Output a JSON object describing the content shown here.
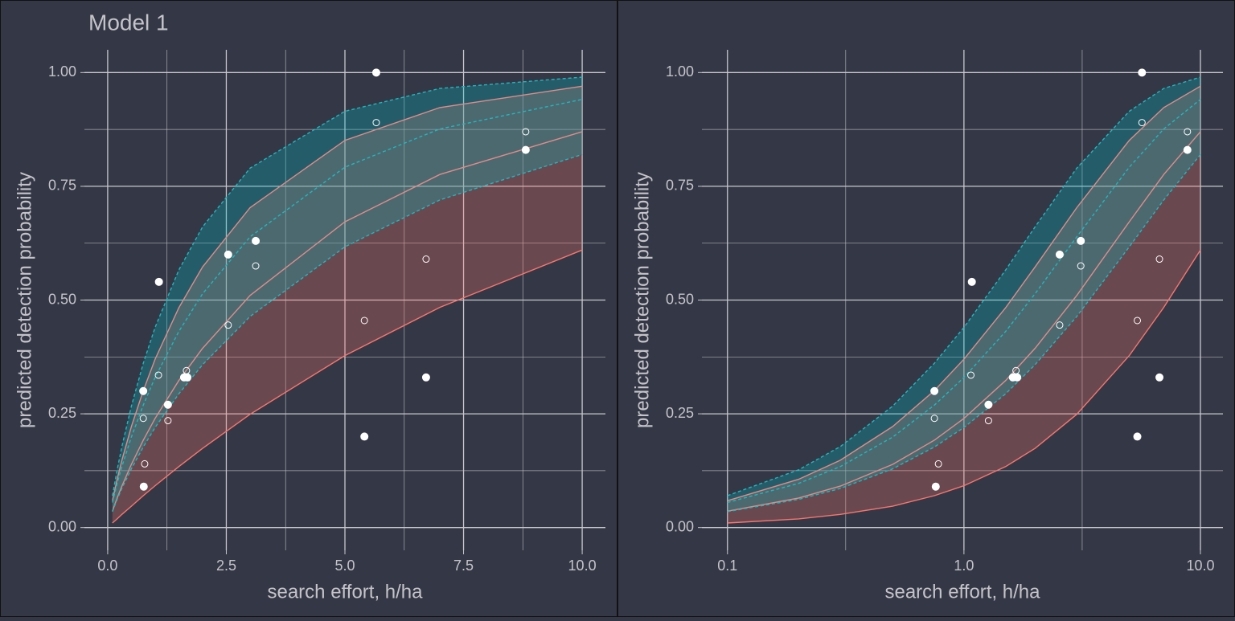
{
  "chart_data": [
    {
      "type": "line",
      "title": "Model 1",
      "x_label": "search effort, h/ha",
      "y_label": "predicted detection probability",
      "xscale": "linear",
      "grid": true,
      "xlim": [
        -0.49,
        10.49
      ],
      "ylim": [
        -0.05,
        1.05
      ],
      "xticks": [
        {
          "value": 0,
          "label": "0.0"
        },
        {
          "value": 2.5,
          "label": "2.5"
        },
        {
          "value": 5,
          "label": "5.0"
        },
        {
          "value": 7.5,
          "label": "7.5"
        },
        {
          "value": 10,
          "label": "10.0"
        }
      ],
      "yticks": [
        {
          "value": 0,
          "label": "0.00"
        },
        {
          "value": 0.25,
          "label": "0.25"
        },
        {
          "value": 0.5,
          "label": "0.50"
        },
        {
          "value": 0.75,
          "label": "0.75"
        },
        {
          "value": 1,
          "label": "1.00"
        }
      ],
      "x": [
        0.1,
        0.2,
        0.3,
        0.5,
        0.75,
        1,
        1.5,
        2,
        3,
        5,
        7,
        10
      ],
      "bands": [
        {
          "color": "#F8766D",
          "line_color": "#e08c88",
          "lower_color": "#F8766D",
          "dashed": false,
          "lower": [
            0.01,
            0.019,
            0.029,
            0.047,
            0.07,
            0.092,
            0.134,
            0.174,
            0.249,
            0.378,
            0.484,
            0.61
          ],
          "mid": [
            0.036,
            0.065,
            0.091,
            0.139,
            0.192,
            0.24,
            0.323,
            0.394,
            0.51,
            0.672,
            0.776,
            0.87
          ],
          "upper": [
            0.059,
            0.106,
            0.148,
            0.222,
            0.301,
            0.37,
            0.483,
            0.573,
            0.703,
            0.851,
            0.923,
            0.97
          ]
        },
        {
          "color": "#00BFC4",
          "line_color": "#1fb8bd",
          "lower_color": "#1fb8bd",
          "dashed": true,
          "lower": [
            0.035,
            0.062,
            0.086,
            0.129,
            0.177,
            0.22,
            0.294,
            0.358,
            0.464,
            0.617,
            0.72,
            0.82
          ],
          "mid": [
            0.055,
            0.097,
            0.134,
            0.199,
            0.269,
            0.33,
            0.431,
            0.514,
            0.639,
            0.792,
            0.876,
            0.941
          ],
          "upper": [
            0.07,
            0.127,
            0.178,
            0.267,
            0.361,
            0.44,
            0.566,
            0.661,
            0.79,
            0.915,
            0.965,
            0.99
          ]
        }
      ],
      "points": [
        {
          "fill": "#ffffff",
          "x": [
            0.75,
            1.08,
            0.76,
            1.27,
            1.61,
            1.68,
            2.54,
            3.12,
            5.66,
            5.41,
            6.71,
            8.81
          ],
          "y": [
            0.3,
            0.54,
            0.09,
            0.27,
            0.33,
            0.33,
            0.6,
            0.63,
            1.0,
            0.2,
            0.33,
            0.83
          ]
        },
        {
          "fill": "none",
          "x": [
            0.75,
            0.78,
            1.07,
            1.27,
            1.66,
            2.54,
            3.12,
            5.66,
            5.41,
            6.71,
            8.81
          ],
          "y": [
            0.24,
            0.14,
            0.335,
            0.235,
            0.345,
            0.445,
            0.575,
            0.89,
            0.455,
            0.59,
            0.87
          ]
        }
      ]
    },
    {
      "type": "line",
      "x_label": "search effort, h/ha",
      "y_label": "predicted detection probability",
      "xscale": "log",
      "grid": true,
      "xlim": [
        0.078,
        12.45
      ],
      "ylim": [
        -0.05,
        1.05
      ],
      "xticks": [
        0.1,
        {
          "value": 1,
          "label": "1.0"
        },
        {
          "value": 10,
          "label": "10.0"
        }
      ],
      "yticks": [
        {
          "value": 0,
          "label": "0.00"
        },
        {
          "value": 0.25,
          "label": "0.25"
        },
        {
          "value": 0.5,
          "label": "0.50"
        },
        {
          "value": 0.75,
          "label": "0.75"
        },
        {
          "value": 1,
          "label": "1.00"
        }
      ],
      "x": [
        0.1,
        0.2,
        0.3,
        0.5,
        0.75,
        1,
        1.5,
        2,
        3,
        5,
        7,
        10
      ],
      "bands": [
        {
          "color": "#F8766D",
          "line_color": "#e08c88",
          "lower_color": "#F8766D",
          "dashed": false,
          "lower": [
            0.01,
            0.019,
            0.029,
            0.047,
            0.07,
            0.092,
            0.134,
            0.174,
            0.249,
            0.378,
            0.484,
            0.61
          ],
          "mid": [
            0.036,
            0.065,
            0.091,
            0.139,
            0.192,
            0.24,
            0.323,
            0.394,
            0.51,
            0.672,
            0.776,
            0.87
          ],
          "upper": [
            0.059,
            0.106,
            0.148,
            0.222,
            0.301,
            0.37,
            0.483,
            0.573,
            0.703,
            0.851,
            0.923,
            0.97
          ]
        },
        {
          "color": "#00BFC4",
          "line_color": "#1fb8bd",
          "lower_color": "#1fb8bd",
          "dashed": true,
          "lower": [
            0.035,
            0.062,
            0.086,
            0.129,
            0.177,
            0.22,
            0.294,
            0.358,
            0.464,
            0.617,
            0.72,
            0.82
          ],
          "mid": [
            0.055,
            0.097,
            0.134,
            0.199,
            0.269,
            0.33,
            0.431,
            0.514,
            0.639,
            0.792,
            0.876,
            0.941
          ],
          "upper": [
            0.07,
            0.127,
            0.178,
            0.267,
            0.361,
            0.44,
            0.566,
            0.661,
            0.79,
            0.915,
            0.965,
            0.99
          ]
        }
      ],
      "points": [
        {
          "fill": "#ffffff",
          "x": [
            0.75,
            1.08,
            0.76,
            1.27,
            1.61,
            1.68,
            2.54,
            3.12,
            5.66,
            5.41,
            6.71,
            8.81
          ],
          "y": [
            0.3,
            0.54,
            0.09,
            0.27,
            0.33,
            0.33,
            0.6,
            0.63,
            1.0,
            0.2,
            0.33,
            0.83
          ]
        },
        {
          "fill": "none",
          "x": [
            0.75,
            0.78,
            1.07,
            1.27,
            1.66,
            2.54,
            3.12,
            5.66,
            5.41,
            6.71,
            8.81
          ],
          "y": [
            0.24,
            0.14,
            0.335,
            0.235,
            0.345,
            0.445,
            0.575,
            0.89,
            0.455,
            0.59,
            0.87
          ]
        }
      ]
    }
  ]
}
